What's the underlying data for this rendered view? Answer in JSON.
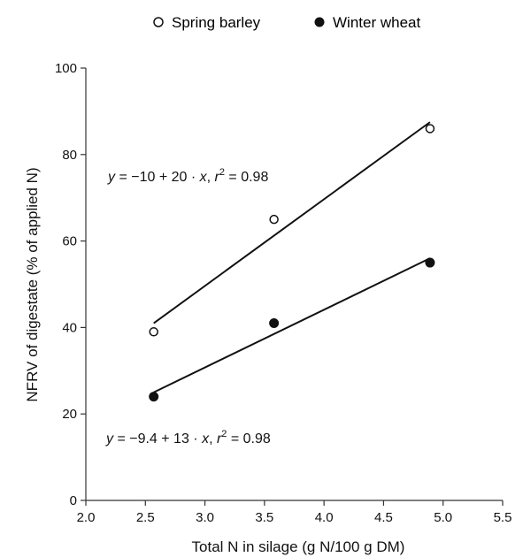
{
  "chart_data": {
    "type": "scatter",
    "xlabel": "Total N in silage (g N/100 g DM)",
    "ylabel": "NFRV of digestate (% of applied N)",
    "xlim": [
      2.0,
      5.5
    ],
    "ylim": [
      0,
      100
    ],
    "xticks": [
      "2.0",
      "2.5",
      "3.0",
      "3.5",
      "4.0",
      "4.5",
      "5.0",
      "5.5"
    ],
    "xtick_values": [
      2.0,
      2.5,
      3.0,
      3.5,
      4.0,
      4.5,
      5.0,
      5.5
    ],
    "yticks": [
      "0",
      "20",
      "40",
      "60",
      "80",
      "100"
    ],
    "ytick_values": [
      0,
      20,
      40,
      60,
      80,
      100
    ],
    "grid": false,
    "legend_position": "top",
    "series": [
      {
        "name": "Spring barley",
        "marker": "open-circle",
        "x": [
          2.57,
          3.58,
          4.89
        ],
        "y": [
          39,
          65,
          86
        ],
        "fit_line": {
          "x": [
            2.57,
            4.89
          ],
          "y": [
            41,
            87.5
          ]
        },
        "equation": {
          "lhs": "y",
          "rhs_pre": " = −10 + 20 · ",
          "var": "x",
          "sep": ",  ",
          "r": "r",
          "sup": "2",
          "rhs_post": " = 0.98"
        }
      },
      {
        "name": "Winter wheat",
        "marker": "filled-circle",
        "x": [
          2.57,
          3.58,
          4.89
        ],
        "y": [
          24,
          41,
          55
        ],
        "fit_line": {
          "x": [
            2.57,
            4.89
          ],
          "y": [
            25,
            56
          ]
        },
        "equation": {
          "lhs": "y",
          "rhs_pre": " = −9.4 + 13 · ",
          "var": "x",
          "sep": ",  ",
          "r": "r",
          "sup": "2",
          "rhs_post": " = 0.98"
        }
      }
    ]
  }
}
